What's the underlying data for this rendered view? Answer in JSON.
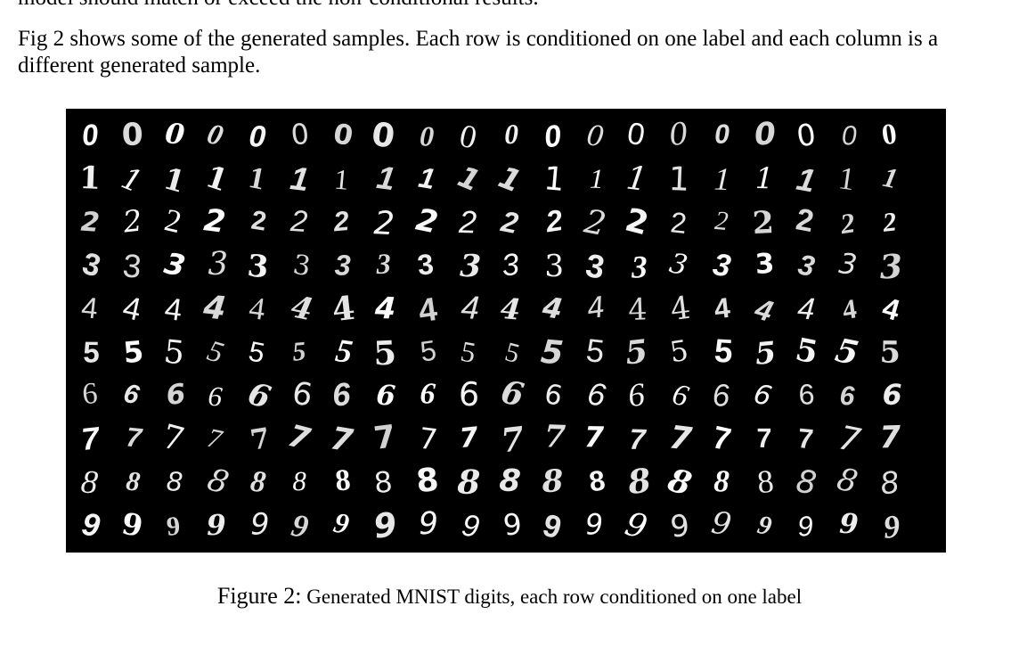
{
  "clipped_line": "model should match or exceed the non-conditional results.",
  "paragraph": "Fig 2 shows some of the generated samples. Each row is conditioned on one label and each column is a different generated sample.",
  "figure": {
    "background": "#000000",
    "digit_color": "#ffffff",
    "rows": [
      "0",
      "1",
      "2",
      "3",
      "4",
      "5",
      "6",
      "7",
      "8",
      "9"
    ],
    "samples_per_row": 20
  },
  "caption": {
    "label": "Figure 2:",
    "text": "Generated MNIST digits, each row conditioned on one label"
  }
}
